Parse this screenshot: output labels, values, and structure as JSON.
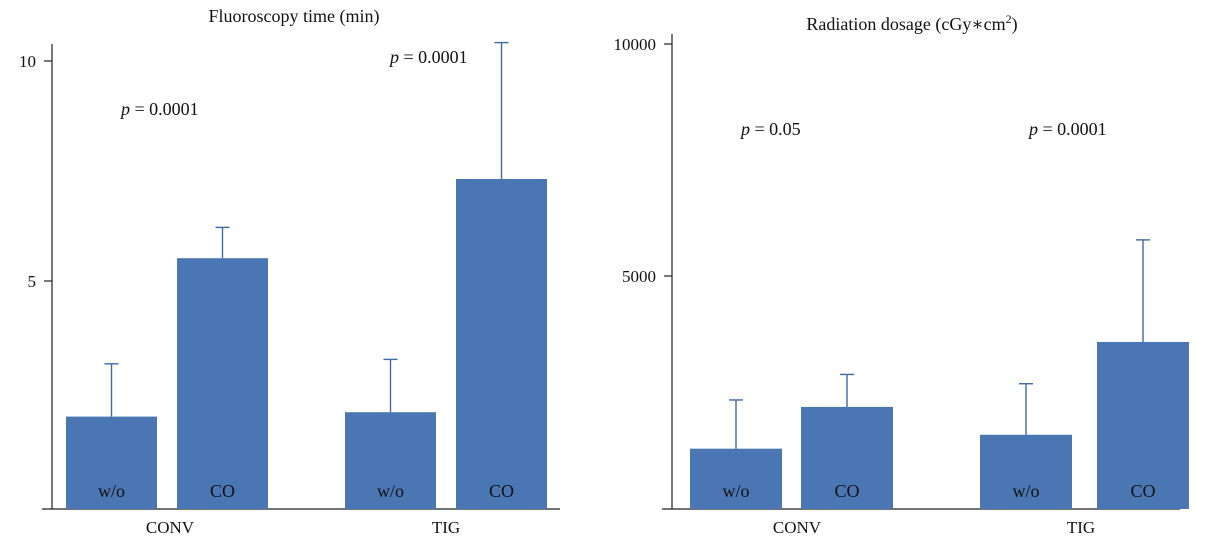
{
  "chart_data": [
    {
      "type": "bar",
      "title": "Fluoroscopy time (min)",
      "group_labels": [
        "CONV",
        "TIG"
      ],
      "bar_labels": [
        "w/o",
        "CO",
        "w/o",
        "CO"
      ],
      "values": [
        2.1,
        5.7,
        2.2,
        7.5
      ],
      "error_upper": [
        3.3,
        6.4,
        3.4,
        10.6
      ],
      "ylim": [
        0,
        10.6
      ],
      "yticks": [
        5,
        10
      ],
      "ytick_labels": [
        "5",
        "10"
      ],
      "annotations": [
        "p = 0.0001",
        "p = 0.0001"
      ],
      "color": "#4a77b4",
      "grid": false,
      "legend": "none"
    },
    {
      "type": "bar",
      "title": "Radiation dosage (cGy∗cm",
      "title_sup": "2",
      "title_end": ")",
      "group_labels": [
        "CONV",
        "TIG"
      ],
      "bar_labels": [
        "w/o",
        "CO",
        "w/o",
        "CO"
      ],
      "values": [
        1300,
        2200,
        1600,
        3600
      ],
      "error_upper": [
        2350,
        2900,
        2700,
        5800
      ],
      "ylim": [
        0,
        10200
      ],
      "yticks": [
        5000,
        10000
      ],
      "ytick_labels": [
        "5000",
        "10000"
      ],
      "annotations": [
        "p = 0.05",
        "p = 0.0001"
      ],
      "color": "#4a77b4",
      "grid": false,
      "legend": "none"
    }
  ]
}
